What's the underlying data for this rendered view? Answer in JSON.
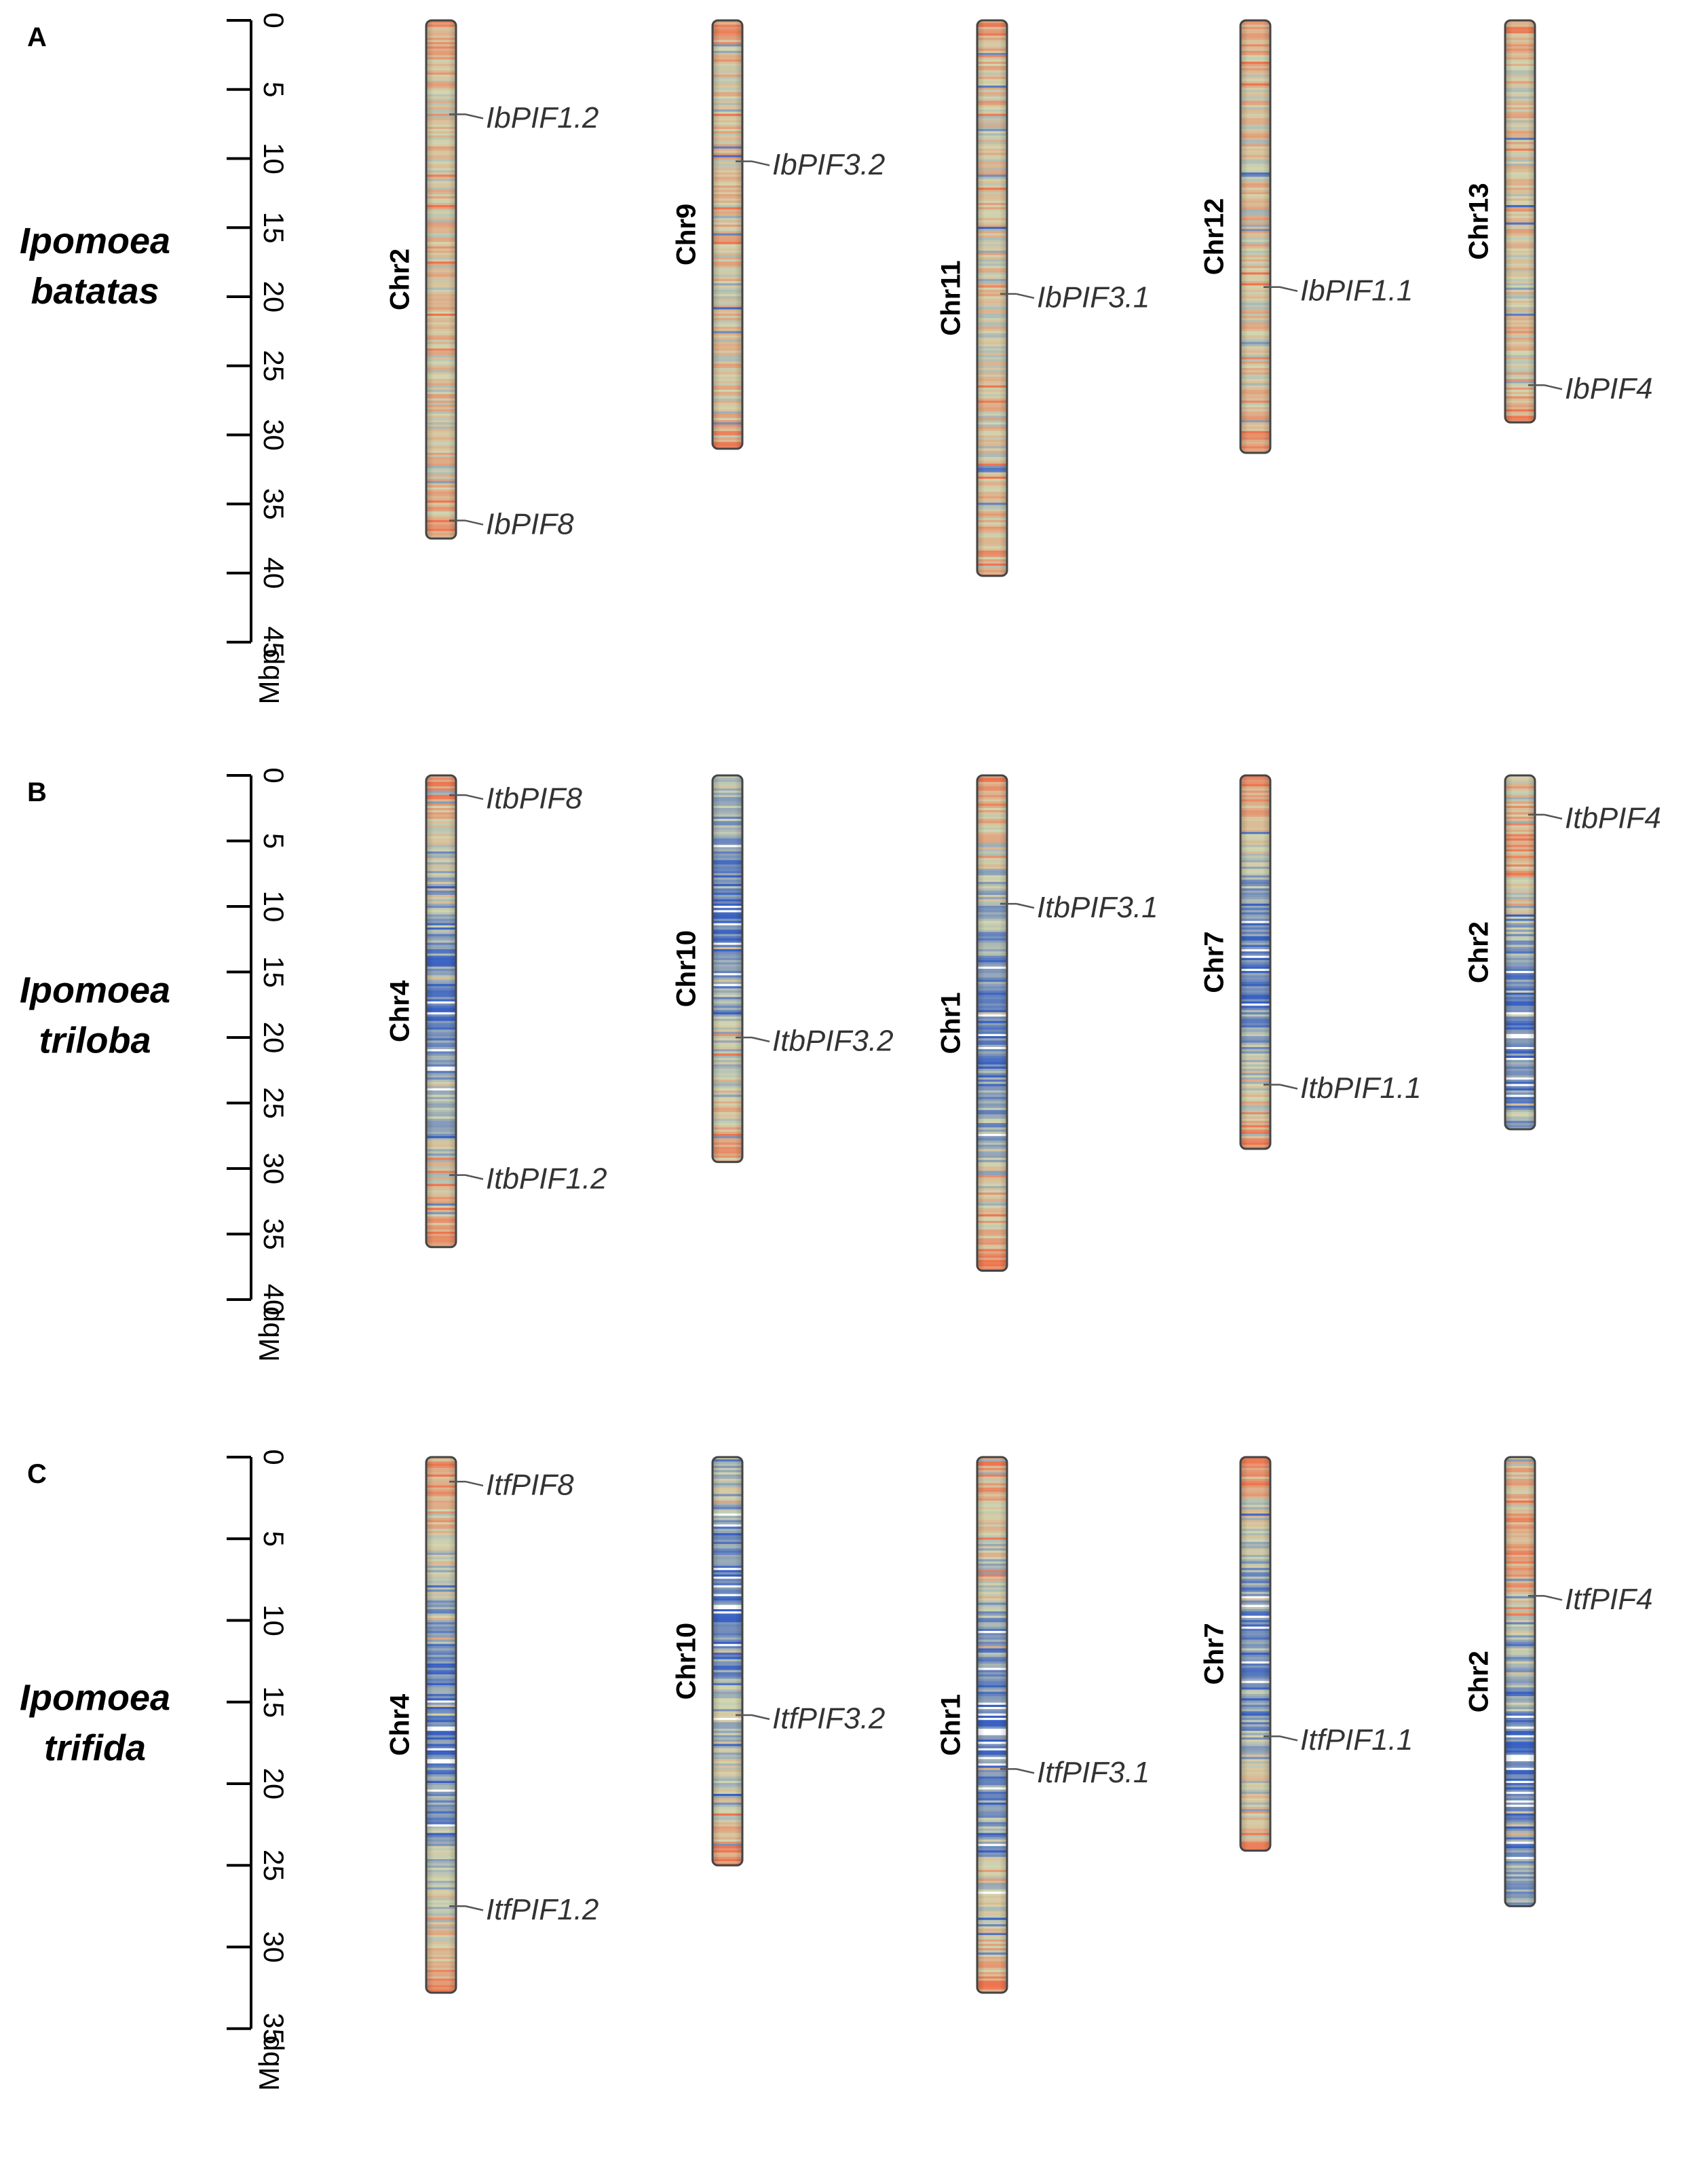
{
  "colors": {
    "low": "#3a62c4",
    "mid": "#d2d6b0",
    "high": "#ef7550",
    "outline": "#444444",
    "text": "#000000",
    "gene_text": "#333333"
  },
  "panels": [
    {
      "letter": "A",
      "species_line1": "Ipomoea",
      "species_line2": "batatas",
      "unit": "Mbp",
      "scale_max": 45,
      "ticks": [
        "0",
        "5",
        "10",
        "15",
        "20",
        "25",
        "30",
        "35",
        "40",
        "45"
      ],
      "chromosomes": [
        {
          "name": "Chr2",
          "length_mbp": 37.5,
          "density_profile": "warm",
          "genes": [
            {
              "name": "IbPIF1.2",
              "pos_mbp": 6.8
            },
            {
              "name": "IbPIF8",
              "pos_mbp": 36.2
            }
          ]
        },
        {
          "name": "Chr9",
          "length_mbp": 31.0,
          "density_profile": "warm",
          "genes": [
            {
              "name": "IbPIF3.2",
              "pos_mbp": 10.2
            }
          ]
        },
        {
          "name": "Chr11",
          "length_mbp": 40.2,
          "density_profile": "warm",
          "genes": [
            {
              "name": "IbPIF3.1",
              "pos_mbp": 19.8
            }
          ]
        },
        {
          "name": "Chr12",
          "length_mbp": 31.3,
          "density_profile": "warm",
          "genes": [
            {
              "name": "IbPIF1.1",
              "pos_mbp": 19.3
            }
          ]
        },
        {
          "name": "Chr13",
          "length_mbp": 29.1,
          "density_profile": "warm",
          "genes": [
            {
              "name": "IbPIF4",
              "pos_mbp": 26.4
            }
          ]
        }
      ]
    },
    {
      "letter": "B",
      "species_line1": "Ipomoea",
      "species_line2": "triloba",
      "unit": "Mbp",
      "scale_max": 40,
      "ticks": [
        "0",
        "5",
        "10",
        "15",
        "20",
        "25",
        "30",
        "35",
        "40"
      ],
      "chromosomes": [
        {
          "name": "Chr4",
          "length_mbp": 36.0,
          "density_profile": "blue-middle",
          "genes": [
            {
              "name": "ItbPIF8",
              "pos_mbp": 1.5
            },
            {
              "name": "ItbPIF1.2",
              "pos_mbp": 30.5
            }
          ]
        },
        {
          "name": "Chr10",
          "length_mbp": 29.5,
          "density_profile": "blue-upper",
          "genes": [
            {
              "name": "ItbPIF3.2",
              "pos_mbp": 20.0
            }
          ]
        },
        {
          "name": "Chr1",
          "length_mbp": 37.8,
          "density_profile": "blue-middle",
          "genes": [
            {
              "name": "ItbPIF3.1",
              "pos_mbp": 9.8
            }
          ]
        },
        {
          "name": "Chr7",
          "length_mbp": 28.5,
          "density_profile": "blue-middle",
          "genes": [
            {
              "name": "ItbPIF1.1",
              "pos_mbp": 23.6
            }
          ]
        },
        {
          "name": "Chr2",
          "length_mbp": 27.0,
          "density_profile": "blue-lower",
          "genes": [
            {
              "name": "ItbPIF4",
              "pos_mbp": 3.0
            }
          ]
        }
      ]
    },
    {
      "letter": "C",
      "species_line1": "Ipomoea",
      "species_line2": "trifida",
      "unit": "Mbp",
      "scale_max": 35,
      "ticks": [
        "0",
        "5",
        "10",
        "15",
        "20",
        "25",
        "30",
        "35"
      ],
      "chromosomes": [
        {
          "name": "Chr4",
          "length_mbp": 32.8,
          "density_profile": "blue-middle",
          "genes": [
            {
              "name": "ItfPIF8",
              "pos_mbp": 1.5
            },
            {
              "name": "ItfPIF1.2",
              "pos_mbp": 27.5
            }
          ]
        },
        {
          "name": "Chr10",
          "length_mbp": 25.0,
          "density_profile": "blue-upper",
          "genes": [
            {
              "name": "ItfPIF3.2",
              "pos_mbp": 15.8
            }
          ]
        },
        {
          "name": "Chr1",
          "length_mbp": 32.8,
          "density_profile": "blue-middle",
          "genes": [
            {
              "name": "ItfPIF3.1",
              "pos_mbp": 19.1
            }
          ]
        },
        {
          "name": "Chr7",
          "length_mbp": 24.1,
          "density_profile": "blue-middle",
          "genes": [
            {
              "name": "ItfPIF1.1",
              "pos_mbp": 17.1
            }
          ]
        },
        {
          "name": "Chr2",
          "length_mbp": 27.5,
          "density_profile": "blue-lower",
          "genes": [
            {
              "name": "ItfPIF4",
              "pos_mbp": 8.5
            }
          ]
        }
      ]
    }
  ]
}
